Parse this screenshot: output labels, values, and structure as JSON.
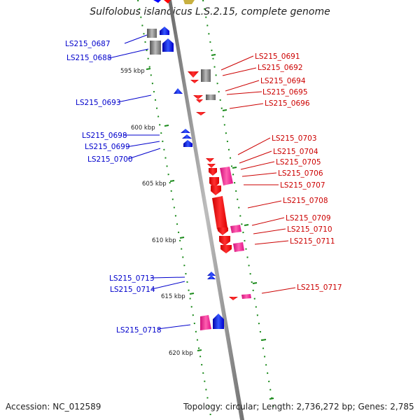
{
  "title": "Sulfolobus islandicus L.S.2.15, complete genome",
  "accession": "Accession: NC_012589",
  "summary": "Topology: circular; Length: 2,736,272 bp; Genes: 2,785",
  "colors": {
    "backbone": "#8a8a8a",
    "forward_gene": "#ff0000",
    "forward_label": "#cc0000",
    "reverse_gene": "#0000ff",
    "reverse_label": "#0000cc",
    "pink_gene": "#ff2a9a",
    "gray_gene": "#999999",
    "tick": "#1a8a1a"
  },
  "scale_labels": [
    "595 kbp",
    "600 kbp",
    "605 kbp",
    "610 kbp",
    "615 kbp",
    "620 kbp"
  ],
  "left_labels": [
    "LS215_0687",
    "LS215_0688",
    "LS215_0693",
    "LS215_0698",
    "LS215_0699",
    "LS215_0700",
    "LS215_0713",
    "LS215_0714",
    "LS215_0718"
  ],
  "right_labels": [
    "LS215_0691",
    "LS215_0692",
    "LS215_0694",
    "LS215_0695",
    "LS215_0696",
    "LS215_0703",
    "LS215_0704",
    "LS215_0705",
    "LS215_0706",
    "LS215_0707",
    "LS215_0708",
    "LS215_0709",
    "LS215_0710",
    "LS215_0711",
    "LS215_0717"
  ]
}
